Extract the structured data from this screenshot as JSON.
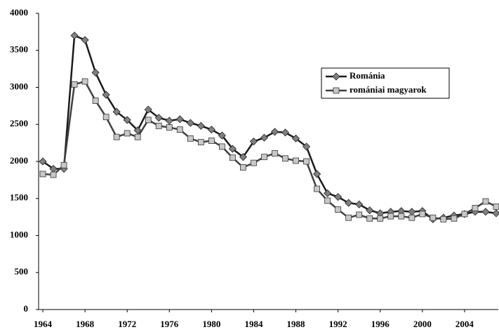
{
  "chart_data": {
    "type": "line",
    "x": [
      1964,
      1965,
      1966,
      1967,
      1968,
      1969,
      1970,
      1971,
      1972,
      1973,
      1974,
      1975,
      1976,
      1977,
      1978,
      1979,
      1980,
      1981,
      1982,
      1983,
      1984,
      1985,
      1986,
      1987,
      1988,
      1989,
      1990,
      1991,
      1992,
      1993,
      1994,
      1995,
      1996,
      1997,
      1998,
      1999,
      2000,
      2001,
      2002,
      2003,
      2004,
      2005,
      2006,
      2007
    ],
    "series": [
      {
        "name": "Románia",
        "color": "#1a1a1a",
        "marker": "diamond",
        "marker_color": "#808080",
        "values": [
          2000,
          1900,
          1900,
          3700,
          3640,
          3200,
          2900,
          2670,
          2560,
          2420,
          2700,
          2590,
          2550,
          2570,
          2520,
          2480,
          2430,
          2350,
          2170,
          2060,
          2270,
          2320,
          2400,
          2390,
          2310,
          2200,
          1830,
          1570,
          1520,
          1440,
          1420,
          1340,
          1300,
          1320,
          1330,
          1320,
          1330,
          1220,
          1240,
          1270,
          1290,
          1320,
          1320,
          1300
        ]
      },
      {
        "name": "romániai magyarok",
        "color": "#404040",
        "marker": "square",
        "marker_color": "#c8c8c8",
        "values": [
          1830,
          1820,
          1950,
          3040,
          3080,
          2820,
          2600,
          2330,
          2380,
          2330,
          2560,
          2480,
          2460,
          2430,
          2310,
          2260,
          2280,
          2200,
          2050,
          1920,
          1980,
          2060,
          2110,
          2040,
          2010,
          2000,
          1630,
          1470,
          1350,
          1240,
          1280,
          1230,
          1230,
          1260,
          1260,
          1240,
          1290,
          1240,
          1220,
          1230,
          1290,
          1370,
          1460,
          1390
        ]
      }
    ],
    "xlim": [
      1963.6,
      2007.2
    ],
    "xticks": [
      1964,
      1968,
      1972,
      1976,
      1980,
      1984,
      1988,
      1992,
      1996,
      2000,
      2004
    ],
    "ylim": [
      0,
      4000
    ],
    "yticks": [
      0,
      500,
      1000,
      1500,
      2000,
      2500,
      3000,
      3500,
      4000
    ],
    "legend": "upper right"
  }
}
